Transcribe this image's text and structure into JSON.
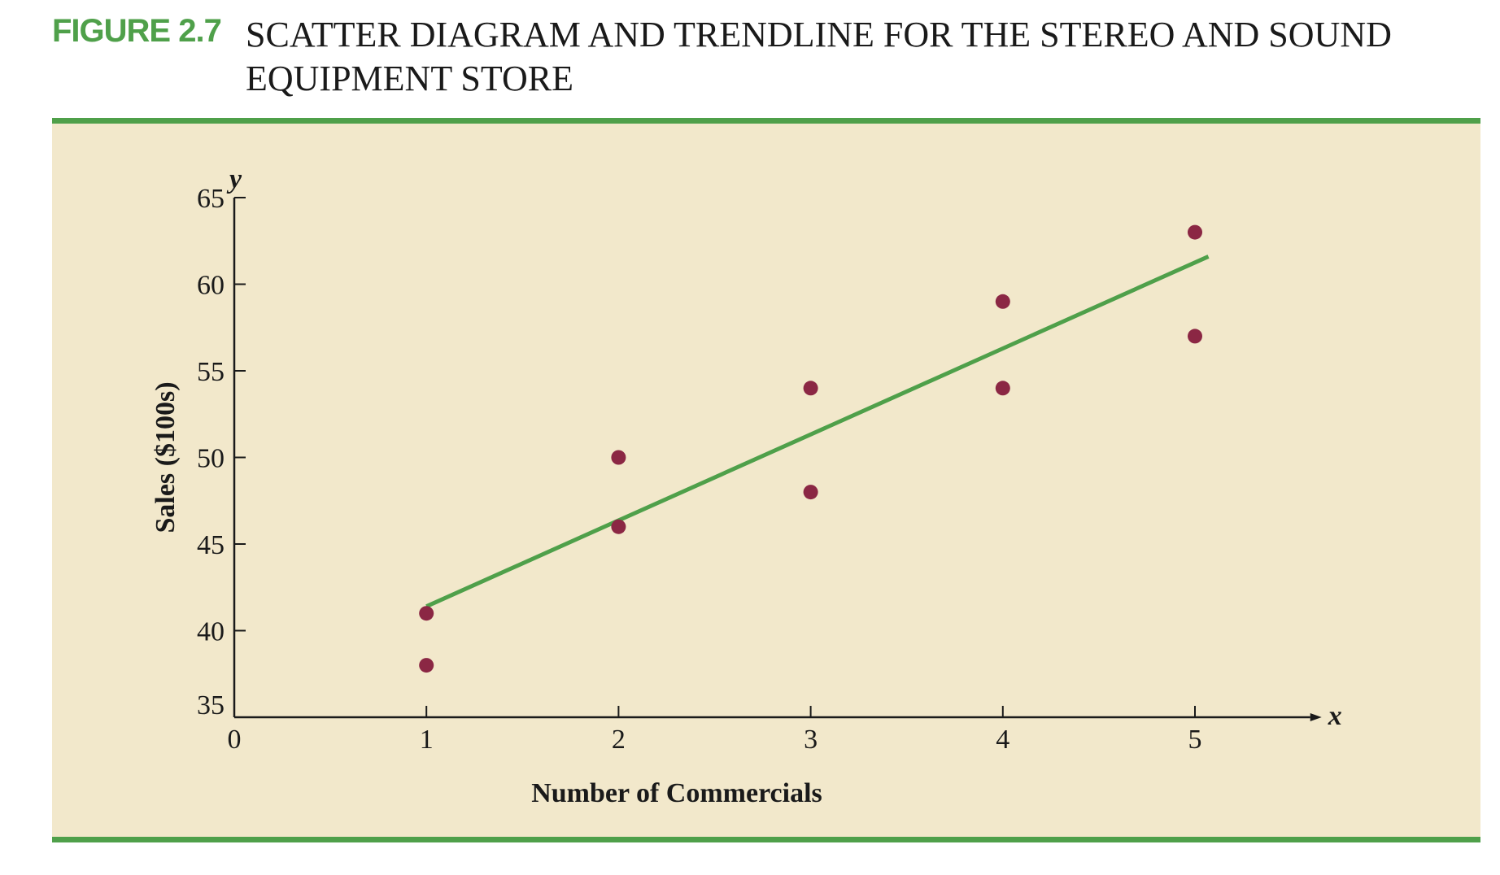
{
  "figure": {
    "label": "FIGURE 2.7",
    "title": "SCATTER DIAGRAM AND TRENDLINE FOR THE STEREO AND SOUND EQUIPMENT STORE"
  },
  "colors": {
    "accent": "#4fa04a",
    "panel": "#f2e8cb",
    "point": "#8b2744",
    "axis": "#1a1a1a"
  },
  "chart_data": {
    "type": "scatter",
    "xlabel": "Number of Commercials",
    "ylabel": "Sales ($100s)",
    "x_axis_symbol": "x",
    "y_axis_symbol": "y",
    "xlim": [
      0,
      5.6
    ],
    "ylim": [
      35,
      65
    ],
    "x_ticks": [
      0,
      1,
      2,
      3,
      4,
      5
    ],
    "y_ticks": [
      35,
      40,
      45,
      50,
      55,
      60,
      65
    ],
    "grid": false,
    "points": [
      {
        "x": 1,
        "y": 41
      },
      {
        "x": 1,
        "y": 38
      },
      {
        "x": 2,
        "y": 50
      },
      {
        "x": 2,
        "y": 46
      },
      {
        "x": 3,
        "y": 54
      },
      {
        "x": 3,
        "y": 48
      },
      {
        "x": 4,
        "y": 59
      },
      {
        "x": 4,
        "y": 54
      },
      {
        "x": 5,
        "y": 63
      },
      {
        "x": 5,
        "y": 57
      }
    ],
    "trendline": {
      "x0": 1,
      "y0": 41.4,
      "x1": 5.07,
      "y1": 61.6
    }
  }
}
